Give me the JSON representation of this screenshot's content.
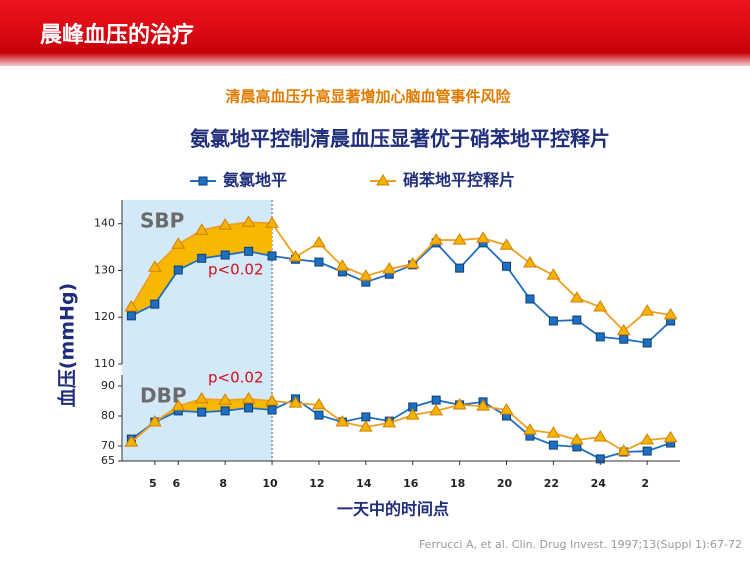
{
  "header": {
    "title": "晨峰血压的治疗"
  },
  "subtitle": "清晨高血压升高显著增加心脑血管事件风险",
  "title": "氨氯地平控制清晨血压显著优于硝苯地平控释片",
  "citation": "Ferrucci A, et al. Clin. Drug Invest. 1997;13(Suppl 1):67-72",
  "chart_data": [
    {
      "type": "line",
      "label": "SBP",
      "annotation": "p<0.02",
      "ylabel": "血压(mmHg)",
      "x": [
        4,
        5,
        6,
        7,
        8,
        9,
        10,
        11,
        12,
        13,
        14,
        15,
        16,
        17,
        18,
        19,
        20,
        21,
        22,
        23,
        24,
        25,
        26,
        27
      ],
      "xlim": [
        3.6,
        27.4
      ],
      "ylim": [
        110,
        144
      ],
      "yticks": [
        110,
        120,
        130,
        140
      ],
      "legend": true,
      "highlight_x": [
        3.6,
        10
      ],
      "highlight_color": "#d3e9f7",
      "fill_between_until": 10,
      "fill_color": "#f6b800",
      "series": [
        {
          "name": "氨氯地平",
          "color": "#1f6fc0",
          "marker": "square",
          "values": [
            120.3,
            122.8,
            130.1,
            132.6,
            133.3,
            134.1,
            133.1,
            132.4,
            131.8,
            129.7,
            127.5,
            129.2,
            131.2,
            135.9,
            130.5,
            135.9,
            130.9,
            123.9,
            119.2,
            119.4,
            115.8,
            115.3,
            114.5,
            119.2
          ]
        },
        {
          "name": "硝苯地平控释片",
          "color": "#f0a020",
          "marker": "triangle",
          "values": [
            122.2,
            130.7,
            135.6,
            138.6,
            139.7,
            140.3,
            140.1,
            132.9,
            135.9,
            130.9,
            128.8,
            130.3,
            131.4,
            136.5,
            136.5,
            136.9,
            135.4,
            131.6,
            129.0,
            124.1,
            122.2,
            117.1,
            121.3,
            120.5
          ]
        }
      ]
    },
    {
      "type": "line",
      "label": "DBP",
      "annotation": "p<0.02",
      "xlabel": "一天中的时间点",
      "x": [
        4,
        5,
        6,
        7,
        8,
        9,
        10,
        11,
        12,
        13,
        14,
        15,
        16,
        17,
        18,
        19,
        20,
        21,
        22,
        23,
        24,
        25,
        26,
        27
      ],
      "xlim": [
        3.6,
        27.4
      ],
      "ylim": [
        65,
        92
      ],
      "yticks": [
        65,
        70,
        80,
        90
      ],
      "xticks": [
        5,
        6,
        8,
        10,
        12,
        14,
        16,
        18,
        20,
        22,
        24,
        {
          "value": 26,
          "label": "2"
        }
      ],
      "fill_between_until": 10,
      "fill_color": "#f6b800",
      "series": [
        {
          "color": "#1f6fc0",
          "marker": "square",
          "values": [
            72.3,
            78.0,
            81.7,
            81.3,
            81.7,
            82.7,
            82.0,
            85.7,
            80.3,
            78.0,
            79.7,
            78.3,
            83.0,
            85.3,
            83.7,
            84.7,
            80.0,
            73.3,
            70.3,
            69.7,
            65.7,
            68.0,
            68.3,
            71.0
          ]
        },
        {
          "color": "#f0a020",
          "marker": "triangle",
          "values": [
            71.3,
            78.0,
            83.3,
            85.7,
            85.3,
            85.7,
            85.0,
            84.3,
            83.7,
            78.0,
            76.3,
            77.7,
            80.3,
            81.7,
            83.7,
            83.3,
            82.0,
            75.3,
            74.3,
            72.0,
            73.0,
            68.3,
            72.0,
            72.7
          ]
        }
      ]
    }
  ]
}
